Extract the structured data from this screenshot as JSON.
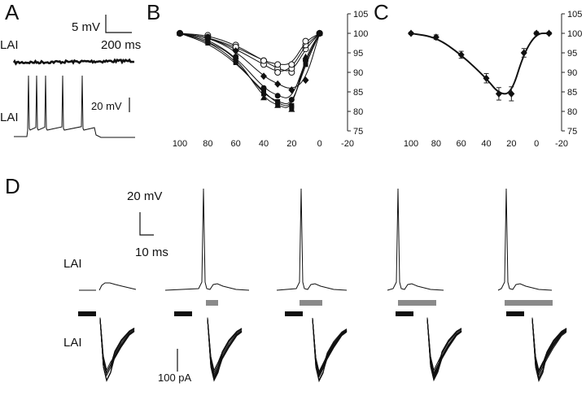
{
  "panels": {
    "a": "A",
    "b": "B",
    "c": "C",
    "d": "D"
  },
  "panel_a": {
    "trace_label_top": "LAI",
    "trace_label_bottom": "LAI",
    "scale_voltage_top": "5 mV",
    "scale_time": "200 ms",
    "scale_voltage_bottom": "20 mV"
  },
  "panel_d": {
    "trace_label_voltage": "LAI",
    "trace_label_current": "LAI",
    "scale_voltage": "20 mV",
    "scale_time": "10 ms",
    "scale_current": "100 pA"
  },
  "chart_data": [
    {
      "id": "B",
      "type": "line",
      "x_ticks": [
        "100",
        "80",
        "60",
        "40",
        "20",
        "0",
        "-20"
      ],
      "y_ticks": [
        "105",
        "100",
        "95",
        "90",
        "85",
        "80",
        "75"
      ],
      "xlim": [
        100,
        -20
      ],
      "ylim": [
        75,
        105
      ],
      "x": [
        100,
        80,
        60,
        40,
        30,
        20,
        10,
        0
      ],
      "series": [
        {
          "name": "open circle 1",
          "marker": "circle-open",
          "values": [
            100,
            99.5,
            97,
            93,
            91,
            90,
            96,
            100
          ]
        },
        {
          "name": "open circle 2",
          "marker": "circle-open",
          "values": [
            100,
            99,
            96,
            92,
            90,
            91,
            97,
            100
          ]
        },
        {
          "name": "open circle 3",
          "marker": "circle-open",
          "values": [
            100,
            99,
            96.5,
            93,
            92,
            92,
            98,
            100
          ]
        },
        {
          "name": "filled diamond",
          "marker": "diamond",
          "values": [
            100,
            99,
            95.5,
            89,
            87,
            85.5,
            88,
            100
          ]
        },
        {
          "name": "filled circle",
          "marker": "circle",
          "values": [
            100,
            98.5,
            94,
            86,
            84,
            83,
            93,
            100
          ]
        },
        {
          "name": "filled square 1",
          "marker": "square",
          "values": [
            100,
            98,
            93,
            84.5,
            82.5,
            81.5,
            92,
            100
          ]
        },
        {
          "name": "filled square 2",
          "marker": "square",
          "values": [
            100,
            97.5,
            92.5,
            85,
            82,
            81,
            93,
            100
          ]
        },
        {
          "name": "filled triangle",
          "marker": "triangle",
          "values": [
            100,
            98,
            94,
            83.5,
            81.5,
            80.5,
            94,
            100
          ]
        }
      ]
    },
    {
      "id": "C",
      "type": "line",
      "x_ticks": [
        "100",
        "80",
        "60",
        "40",
        "20",
        "0",
        "-20"
      ],
      "y_ticks": [
        "105",
        "100",
        "95",
        "90",
        "85",
        "80",
        "75"
      ],
      "xlim": [
        100,
        -20
      ],
      "ylim": [
        75,
        105
      ],
      "x": [
        100,
        80,
        60,
        40,
        30,
        20,
        10,
        0,
        -10
      ],
      "series": [
        {
          "name": "mean",
          "marker": "diamond",
          "values": [
            100,
            99,
            94.5,
            88.5,
            84.5,
            84.5,
            95,
            100,
            100
          ],
          "errors": [
            0.3,
            0.6,
            0.9,
            1.2,
            1.6,
            1.8,
            1.1,
            0.4,
            0.3
          ]
        }
      ]
    }
  ]
}
